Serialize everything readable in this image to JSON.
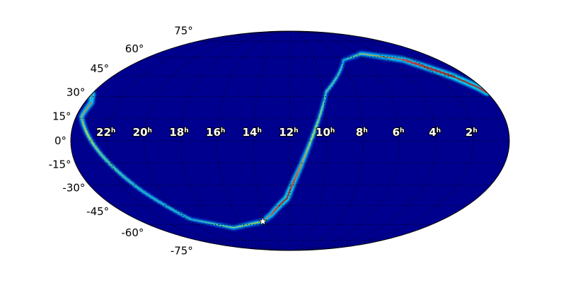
{
  "chart_data": {
    "type": "heatmap",
    "projection": "mollweide",
    "title": "",
    "colormap": "jet",
    "background_color": "#00008f",
    "grid": true,
    "grid_style": "dotted",
    "ra_tick_labels": [
      {
        "ra_hours": 22,
        "label": "22",
        "unit": "h"
      },
      {
        "ra_hours": 20,
        "label": "20",
        "unit": "h"
      },
      {
        "ra_hours": 18,
        "label": "18",
        "unit": "h"
      },
      {
        "ra_hours": 16,
        "label": "16",
        "unit": "h"
      },
      {
        "ra_hours": 14,
        "label": "14",
        "unit": "h"
      },
      {
        "ra_hours": 12,
        "label": "12",
        "unit": "h"
      },
      {
        "ra_hours": 10,
        "label": "10",
        "unit": "h"
      },
      {
        "ra_hours": 8,
        "label": "8",
        "unit": "h"
      },
      {
        "ra_hours": 6,
        "label": "6",
        "unit": "h"
      },
      {
        "ra_hours": 4,
        "label": "4",
        "unit": "h"
      },
      {
        "ra_hours": 2,
        "label": "2",
        "unit": "h"
      }
    ],
    "dec_tick_labels": [
      {
        "dec": 75,
        "label": "75°"
      },
      {
        "dec": 60,
        "label": "60°"
      },
      {
        "dec": 45,
        "label": "45°"
      },
      {
        "dec": 30,
        "label": "30°"
      },
      {
        "dec": 15,
        "label": "15°"
      },
      {
        "dec": 0,
        "label": "0°"
      },
      {
        "dec": -15,
        "label": "-15°"
      },
      {
        "dec": -30,
        "label": "-30°"
      },
      {
        "dec": -45,
        "label": "-45°"
      },
      {
        "dec": -60,
        "label": "-60°"
      },
      {
        "dec": -75,
        "label": "-75°"
      }
    ],
    "probability_ridge": [
      {
        "ra": 23.6,
        "dec": 25.7,
        "p": 0.75
      },
      {
        "ra": 0.2,
        "dec": 36,
        "p": 0.95
      },
      {
        "ra": 1.0,
        "dec": 44.6,
        "p": 1.0
      },
      {
        "ra": 2.8,
        "dec": 58,
        "p": 0.85
      },
      {
        "ra": 5.6,
        "dec": 63.1,
        "p": 0.5
      },
      {
        "ra": 7.7,
        "dec": 57.5,
        "p": 0.2
      },
      {
        "ra": 9.8,
        "dec": 33.2,
        "p": 0.25
      },
      {
        "ra": 10.8,
        "dec": 2,
        "p": 0.45
      },
      {
        "ra": 11.4,
        "dec": -17,
        "p": 0.7
      },
      {
        "ra": 12.2,
        "dec": -39.3,
        "p": 1.0
      },
      {
        "ra": 13.4,
        "dec": -52,
        "p": 0.8
      },
      {
        "ra": 14.2,
        "dec": -57.5,
        "p": 0.55
      },
      {
        "ra": 17.1,
        "dec": -63.1,
        "p": 0.4
      },
      {
        "ra": 19.8,
        "dec": -55.7,
        "p": 0.15
      },
      {
        "ra": 21.1,
        "dec": -34.2,
        "p": 0.15
      },
      {
        "ra": 22.5,
        "dec": -7.5,
        "p": 0.3
      },
      {
        "ra": 23.7,
        "dec": 16.1,
        "p": 0.6
      }
    ],
    "marker": {
      "type": "star",
      "ra": 14.2,
      "dec": -57.5,
      "color": "#ffffff"
    }
  }
}
